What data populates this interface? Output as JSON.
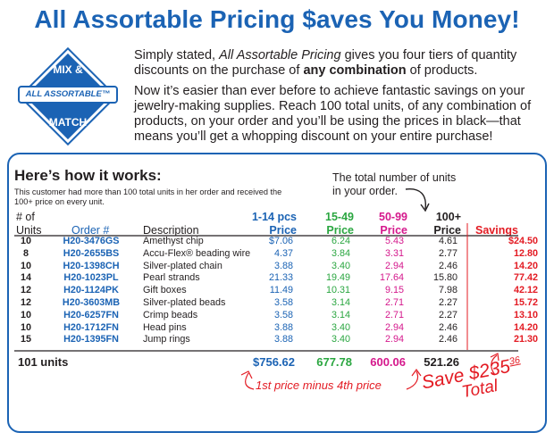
{
  "headline": "All Assortable Pricing $aves You Money!",
  "badge": {
    "top": "MIX &",
    "banner": "ALL ASSORTABLE™",
    "bottom": "MATCH"
  },
  "intro": {
    "p1_a": "Simply stated, ",
    "p1_em": "All Assortable Pricing",
    "p1_b": " gives you four tiers of quantity discounts on the purchase of ",
    "p1_strong": "any combination",
    "p1_c": " of products.",
    "p2": "Now it’s easier than ever before to achieve fantastic savings on your jewelry-making supplies. Reach 100 total units, of any combination of products, on your order and you’ll be using the prices in black—that means you’ll get a whopping discount on your entire purchase!"
  },
  "how": {
    "title": "Here’s how it works:",
    "note": "This customer had more than 100 total units in her order and received the 100+ price on every unit.",
    "total_note": "The total number of units in your order."
  },
  "headers": {
    "units_1": "# of",
    "units_2": "Units",
    "order": "Order #",
    "desc": "Description",
    "p1_1": "1-14 pcs",
    "p1_2": "Price",
    "p2_1": "15-49",
    "p2_2": "Price",
    "p3_1": "50-99",
    "p3_2": "Price",
    "p4_1": "100+",
    "p4_2": "Price",
    "savings": "Savings"
  },
  "rows": [
    {
      "units": "10",
      "order": "H20-3476GS",
      "desc": "Amethyst chip",
      "p1": "$7.06",
      "p2": "6.24",
      "p3": "5.43",
      "p4": "4.61",
      "sav": "$24.50"
    },
    {
      "units": "8",
      "order": "H20-2655BS",
      "desc": "Accu-Flex® beading wire",
      "p1": "4.37",
      "p2": "3.84",
      "p3": "3.31",
      "p4": "2.77",
      "sav": "12.80"
    },
    {
      "units": "10",
      "order": "H20-1398CH",
      "desc": "Silver-plated chain",
      "p1": "3.88",
      "p2": "3.40",
      "p3": "2.94",
      "p4": "2.46",
      "sav": "14.20"
    },
    {
      "units": "14",
      "order": "H20-1023PL",
      "desc": "Pearl strands",
      "p1": "21.33",
      "p2": "19.49",
      "p3": "17.64",
      "p4": "15.80",
      "sav": "77.42"
    },
    {
      "units": "12",
      "order": "H20-1124PK",
      "desc": "Gift boxes",
      "p1": "11.49",
      "p2": "10.31",
      "p3": "9.15",
      "p4": "7.98",
      "sav": "42.12"
    },
    {
      "units": "12",
      "order": "H20-3603MB",
      "desc": "Silver-plated beads",
      "p1": "3.58",
      "p2": "3.14",
      "p3": "2.71",
      "p4": "2.27",
      "sav": "15.72"
    },
    {
      "units": "10",
      "order": "H20-6257FN",
      "desc": "Crimp beads",
      "p1": "3.58",
      "p2": "3.14",
      "p3": "2.71",
      "p4": "2.27",
      "sav": "13.10"
    },
    {
      "units": "10",
      "order": "H20-1712FN",
      "desc": "Head pins",
      "p1": "3.88",
      "p2": "3.40",
      "p3": "2.94",
      "p4": "2.46",
      "sav": "14.20"
    },
    {
      "units": "15",
      "order": "H20-1395FN",
      "desc": "Jump rings",
      "p1": "3.88",
      "p2": "3.40",
      "p3": "2.94",
      "p4": "2.46",
      "sav": "21.30"
    }
  ],
  "totals": {
    "units": "101 units",
    "p1": "$756.62",
    "p2": "677.78",
    "p3": "600.06",
    "p4": "521.26"
  },
  "minus_note": "1st price minus 4th price",
  "save": {
    "prefix": "Save $235",
    "cents": "36",
    "total": "Total"
  },
  "colors": {
    "blue": "#1b63b4",
    "green": "#2aa640",
    "pink": "#d5188c",
    "red": "#e31b23"
  }
}
